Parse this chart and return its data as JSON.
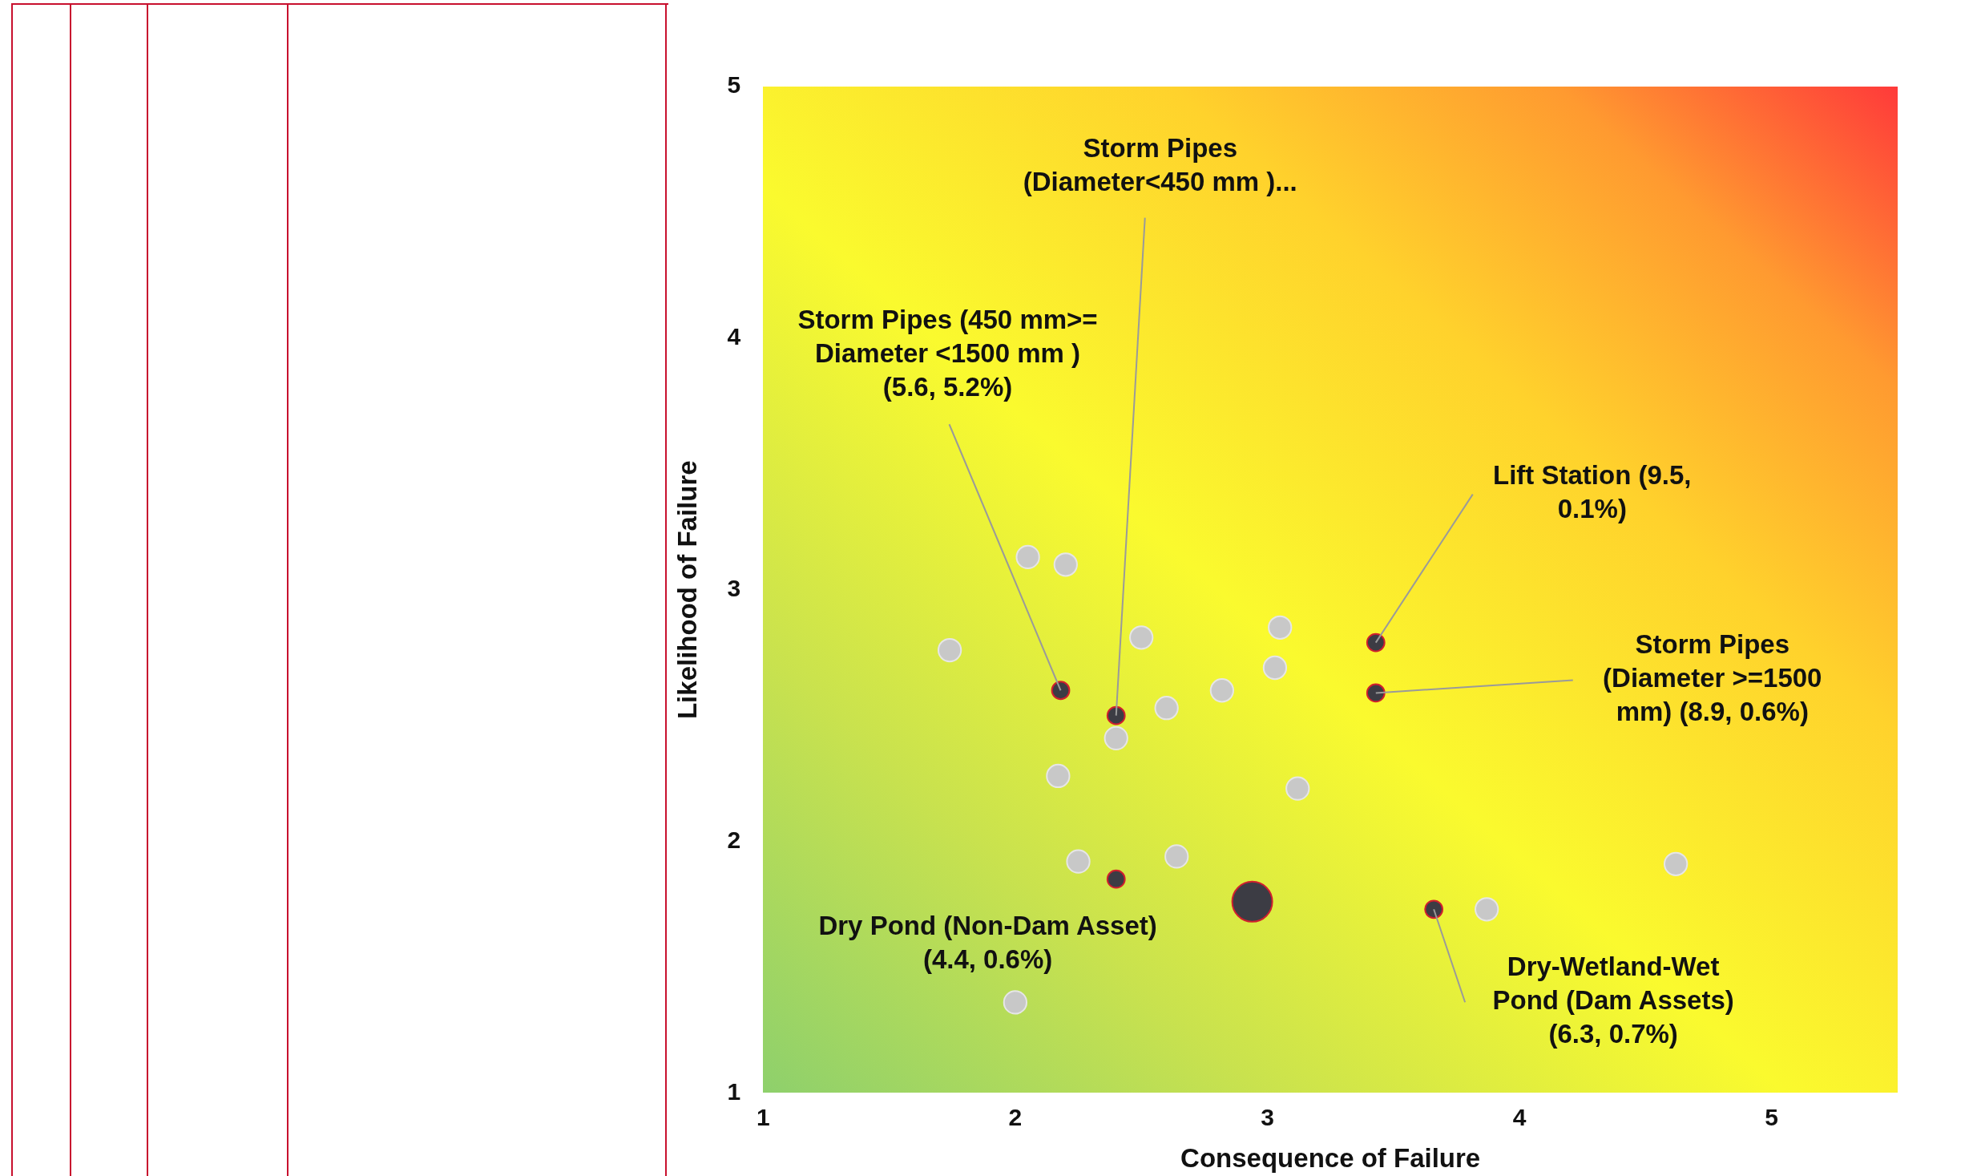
{
  "chart_data": {
    "type": "bubble",
    "xlabel": "Consequence of Failure",
    "ylabel": "Likelihood of Failure",
    "xlim": [
      1,
      5.5
    ],
    "xticks": [
      1,
      2,
      3,
      4,
      5
    ],
    "ylim": [
      1,
      5
    ],
    "yticks": [
      1,
      2,
      3,
      4,
      5
    ],
    "legend": false,
    "grid": false,
    "series": [
      {
        "color": "#c8c8c8",
        "x": [
          1.74,
          2.05,
          2.2,
          2.5,
          3.05,
          3.03,
          2.82,
          2.6,
          2.4,
          2.17,
          3.12,
          2.25,
          2.64,
          3.87,
          4.62,
          2.0
        ],
        "values": [
          2.76,
          3.13,
          3.1,
          2.81,
          2.85,
          2.69,
          2.6,
          2.53,
          2.41,
          2.26,
          2.21,
          1.92,
          1.94,
          1.73,
          1.91,
          1.36
        ],
        "sizes": [
          0.32,
          0.32,
          0.32,
          0.32,
          0.32,
          0.32,
          0.32,
          0.32,
          0.32,
          0.32,
          0.32,
          0.32,
          0.32,
          0.32,
          0.32,
          0.32
        ]
      },
      {
        "color": "#3c3c44",
        "x": [
          2.18,
          2.4,
          3.43,
          3.43,
          2.4,
          2.94,
          3.66
        ],
        "values": [
          2.6,
          2.5,
          2.79,
          2.59,
          1.85,
          1.76,
          1.73
        ],
        "sizes": [
          0.19,
          0.19,
          0.19,
          0.19,
          0.19,
          1,
          0.19
        ]
      }
    ],
    "annotations": [
      {
        "text": "Storm Pipes (450 mm>=\nDiameter <1500 mm )\n(5.6, 5.2%)",
        "x": 2.18,
        "y": 2.6
      },
      {
        "text": "Storm Pipes\n(Diameter<450 mm )...",
        "x": 2.4,
        "y": 2.5
      },
      {
        "text": "Lift Station (9.5,\n0.1%)",
        "x": 3.43,
        "y": 2.79
      },
      {
        "text": "Storm Pipes\n(Diameter >=1500\nmm) (8.9, 0.6%)",
        "x": 3.43,
        "y": 2.59
      },
      "Dry Pond (Non-Dam Asset)\n(4.4, 0.6%)",
      {
        "text": "Dry-Wetland-Wet\nPond (Dam Assets)\n(6.3, 0.7%)",
        "x": 3.66,
        "y": 1.73
      }
    ]
  }
}
